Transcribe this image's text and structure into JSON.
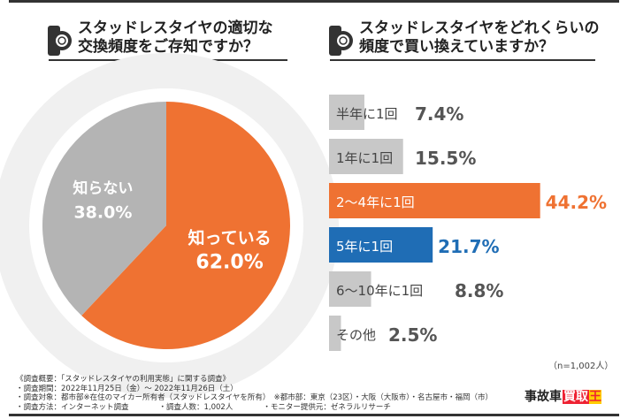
{
  "charts_titles": {
    "left": "スタッドレスタイヤの適切な\n交換頻度をご存知ですか？",
    "right": "スタッドレスタイヤをどれくらいの\n頻度で買い換えていますか？"
  },
  "chart_data": [
    {
      "type": "pie",
      "title": "スタッドレスタイヤの適切な交換頻度をご存知ですか？",
      "slices": [
        {
          "label": "知っている",
          "value": 62.0,
          "display": "62.0%",
          "color": "#ef7232"
        },
        {
          "label": "知らない",
          "value": 38.0,
          "display": "38.0%",
          "color": "#b4b4b4"
        }
      ]
    },
    {
      "type": "bar",
      "orientation": "horizontal",
      "title": "スタッドレスタイヤをどれくらいの頻度で買い換えていますか？",
      "categories": [
        "半年に1回",
        "1年に1回",
        "2〜4年に1回",
        "5年に1回",
        "6〜10年に1回",
        "その他"
      ],
      "values": [
        7.4,
        15.5,
        44.2,
        21.7,
        8.8,
        2.5
      ],
      "display": [
        "7.4%",
        "15.5%",
        "44.2%",
        "21.7%",
        "8.8%",
        "2.5%"
      ],
      "colors": [
        "#c8c8c8",
        "#c8c8c8",
        "#ef7232",
        "#1f6db5",
        "#c8c8c8",
        "#c8c8c8"
      ],
      "value_colors": [
        "#555",
        "#555",
        "#ef7232",
        "#1f6db5",
        "#555",
        "#555"
      ]
    }
  ],
  "sample": "（n=1,002人）",
  "footnote": [
    "《調査概要：「スタッドレスタイヤの利用実態」に関する調査》",
    "・調査期間：2022年11月25日（金）〜 2022年11月26日（土）",
    "・調査対象：都市部※在住のマイカー所有者（スタッドレスタイヤを所有）　※都市部：東京（23区）・大阪（大阪市）・名古屋市・福岡（市）",
    "・調査方法：インターネット調査　　　　・調査人数：1,002人　　　　・モニター提供元：ゼネラルリサーチ"
  ],
  "logo": {
    "a": "事故車",
    "b": "買取",
    "c": "王"
  }
}
